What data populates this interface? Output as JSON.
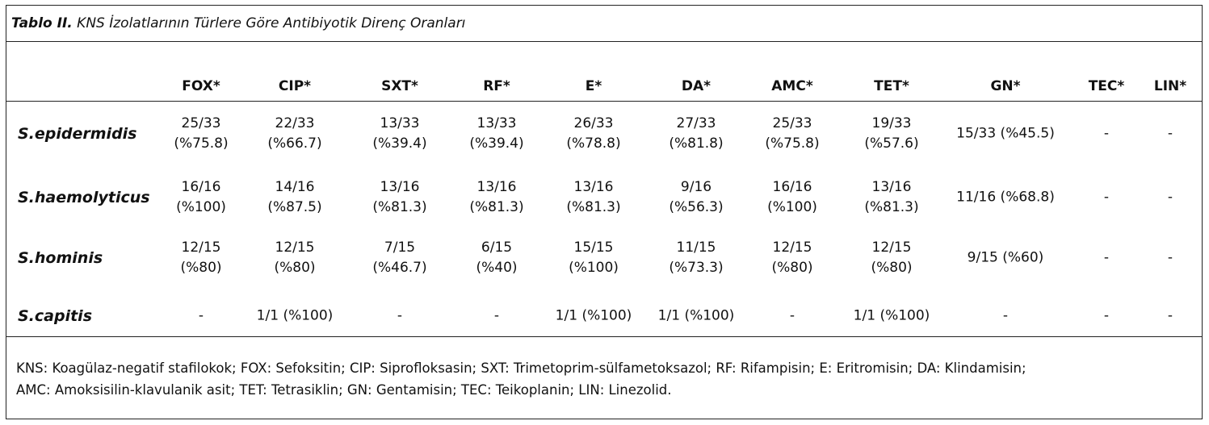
{
  "caption": {
    "lead": "Tablo II.",
    "title": "KNS İzolatlarının Türlere Göre Antibiyotik Direnç Oranları"
  },
  "columns": [
    "FOX*",
    "CIP*",
    "SXT*",
    "RF*",
    "E*",
    "DA*",
    "AMC*",
    "TET*",
    "GN*",
    "TEC*",
    "LIN*"
  ],
  "rows": [
    {
      "label": "S.epidermidis",
      "cells": [
        [
          "25/33",
          "(%75.8)"
        ],
        [
          "22/33",
          "(%66.7)"
        ],
        [
          "13/33",
          "(%39.4)"
        ],
        [
          "13/33",
          "(%39.4)"
        ],
        [
          "26/33",
          "(%78.8)"
        ],
        [
          "27/33",
          "(%81.8)"
        ],
        [
          "25/33",
          "(%75.8)"
        ],
        [
          "19/33",
          "(%57.6)"
        ],
        [
          "15/33 (%45.5)"
        ],
        [
          "-"
        ],
        [
          "-"
        ]
      ]
    },
    {
      "label": "S.haemolyticus",
      "cells": [
        [
          "16/16",
          "(%100)"
        ],
        [
          "14/16",
          "(%87.5)"
        ],
        [
          "13/16",
          "(%81.3)"
        ],
        [
          "13/16",
          "(%81.3)"
        ],
        [
          "13/16",
          "(%81.3)"
        ],
        [
          "9/16",
          "(%56.3)"
        ],
        [
          "16/16",
          "(%100)"
        ],
        [
          "13/16",
          "(%81.3)"
        ],
        [
          "11/16 (%68.8)"
        ],
        [
          "-"
        ],
        [
          "-"
        ]
      ]
    },
    {
      "label": "S.hominis",
      "cells": [
        [
          "12/15",
          "(%80)"
        ],
        [
          "12/15",
          "(%80)"
        ],
        [
          "7/15",
          "(%46.7)"
        ],
        [
          "6/15",
          "(%40)"
        ],
        [
          "15/15",
          "(%100)"
        ],
        [
          "11/15",
          "(%73.3)"
        ],
        [
          "12/15",
          "(%80)"
        ],
        [
          "12/15",
          "(%80)"
        ],
        [
          "9/15 (%60)"
        ],
        [
          "-"
        ],
        [
          "-"
        ]
      ]
    },
    {
      "label": "S.capitis",
      "cells": [
        [
          "-"
        ],
        [
          "1/1 (%100)"
        ],
        [
          "-"
        ],
        [
          "-"
        ],
        [
          "1/1 (%100)"
        ],
        [
          "1/1 (%100)"
        ],
        [
          "-"
        ],
        [
          "1/1 (%100)"
        ],
        [
          "-"
        ],
        [
          "-"
        ],
        [
          "-"
        ]
      ]
    }
  ],
  "footnote": {
    "line1": "KNS: Koagülaz-negatif stafilokok; FOX: Sefoksitin; CIP: Siprofloksasin; SXT: Trimetoprim-sülfametoksazol; RF: Rifampisin; E: Eritromisin; DA: Klindamisin;",
    "line2": "AMC: Amoksisilin-klavulanik asit; TET: Tetrasiklin; GN: Gentamisin; TEC: Teikoplanin; LIN: Linezolid."
  }
}
